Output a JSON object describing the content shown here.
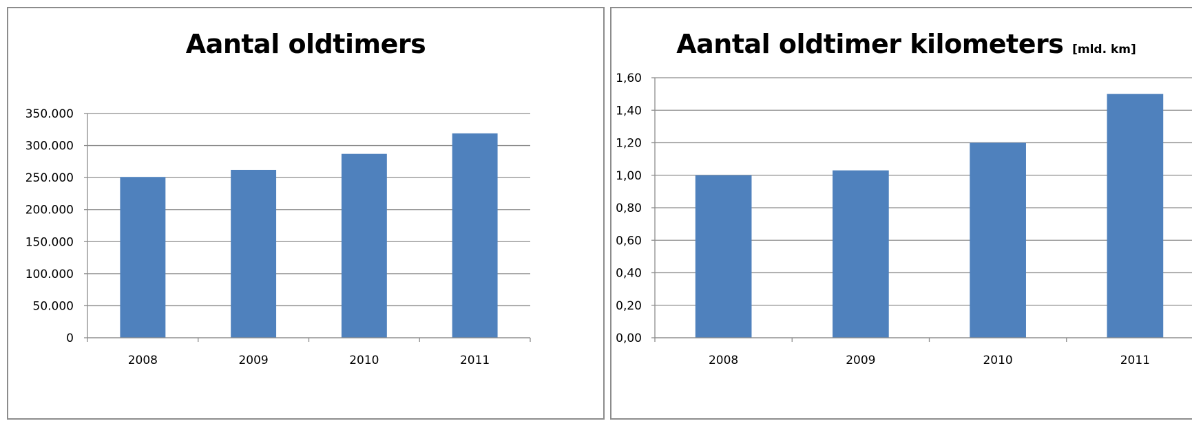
{
  "chart_data": [
    {
      "type": "bar",
      "title": "Aantal oldtimers",
      "unit_label": "",
      "categories": [
        "2008",
        "2009",
        "2010",
        "2011"
      ],
      "values": [
        251000,
        262000,
        287000,
        319000
      ],
      "ylim": [
        0,
        350000
      ],
      "yticks": [
        0,
        50000,
        100000,
        150000,
        200000,
        250000,
        300000,
        350000
      ],
      "ytick_labels": [
        "0",
        "50.000",
        "100.000",
        "150.000",
        "200.000",
        "250.000",
        "300.000",
        "350.000"
      ],
      "grid": true,
      "legend": "none",
      "bar_color": "#4f81bd"
    },
    {
      "type": "bar",
      "title": "Aantal oldtimer kilometers",
      "unit_label": "[mld. km]",
      "categories": [
        "2008",
        "2009",
        "2010",
        "2011"
      ],
      "values": [
        1.0,
        1.03,
        1.2,
        1.5
      ],
      "ylim": [
        0,
        1.6
      ],
      "yticks": [
        0,
        0.2,
        0.4,
        0.6,
        0.8,
        1.0,
        1.2,
        1.4,
        1.6
      ],
      "ytick_labels": [
        "0,00",
        "0,20",
        "0,40",
        "0,60",
        "0,80",
        "1,00",
        "1,20",
        "1,40",
        "1,60"
      ],
      "grid": true,
      "legend": "none",
      "bar_color": "#4f81bd"
    }
  ]
}
